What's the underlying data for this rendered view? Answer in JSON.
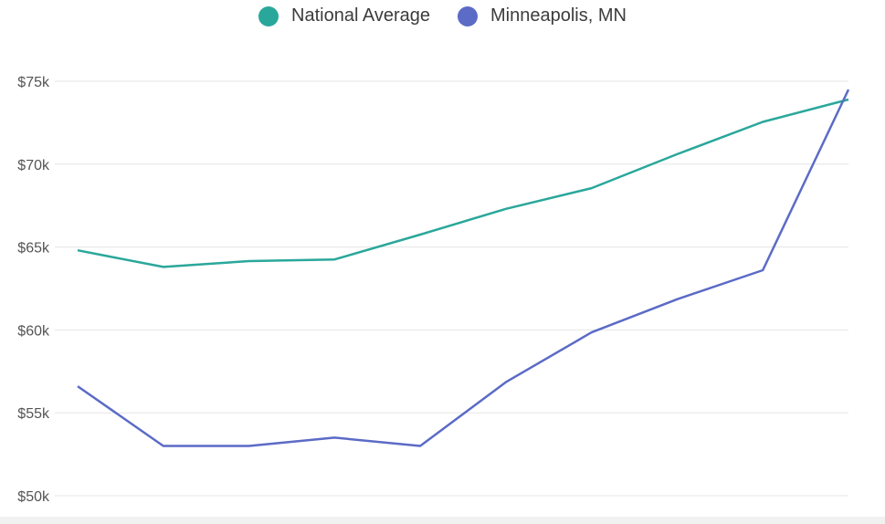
{
  "chart_data": {
    "type": "line",
    "title": "",
    "xlabel": "",
    "ylabel": "",
    "ylim": [
      50000,
      75000
    ],
    "yticks": [
      {
        "value": 75000,
        "label": "$75k"
      },
      {
        "value": 70000,
        "label": "$70k"
      },
      {
        "value": 65000,
        "label": "$65k"
      },
      {
        "value": 60000,
        "label": "$60k"
      },
      {
        "value": 55000,
        "label": "$55k"
      },
      {
        "value": 50000,
        "label": "$50k"
      }
    ],
    "x": [
      1,
      2,
      3,
      4,
      5,
      6,
      7,
      8,
      9,
      10
    ],
    "series": [
      {
        "name": "National Average",
        "color": "#2aa79b",
        "values": [
          64800,
          63800,
          64150,
          64250,
          65750,
          67300,
          68550,
          70600,
          72550,
          73900
        ]
      },
      {
        "name": "Minneapolis, MN",
        "color": "#5b6bc6",
        "values": [
          56600,
          53000,
          53000,
          53500,
          53000,
          56850,
          59850,
          61850,
          63600,
          74500
        ]
      }
    ],
    "legend": "top-center",
    "grid": true
  }
}
